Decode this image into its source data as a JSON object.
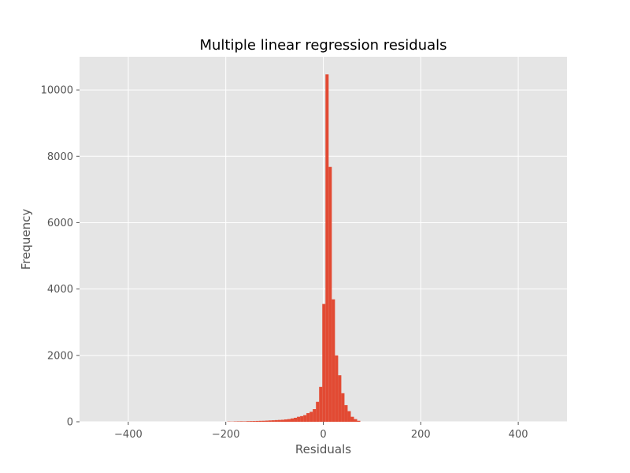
{
  "chart_data": {
    "type": "bar",
    "title": "Multiple linear regression residuals",
    "xlabel": "Residuals",
    "ylabel": "Frequency",
    "xlim": [
      -500,
      500
    ],
    "ylim": [
      0,
      11000
    ],
    "xticks": [
      -400,
      -200,
      0,
      200,
      400
    ],
    "xtick_labels": [
      "−400",
      "−200",
      "0",
      "200",
      "400"
    ],
    "yticks": [
      0,
      2000,
      4000,
      6000,
      8000,
      10000
    ],
    "ytick_labels": [
      "0",
      "2000",
      "4000",
      "6000",
      "8000",
      "10000"
    ],
    "grid": true,
    "bin_width": 6.5,
    "bins": [
      {
        "x": -197,
        "count": 8
      },
      {
        "x": -190.5,
        "count": 6
      },
      {
        "x": -184,
        "count": 10
      },
      {
        "x": -177.5,
        "count": 12
      },
      {
        "x": -171,
        "count": 14
      },
      {
        "x": -164.5,
        "count": 12
      },
      {
        "x": -158,
        "count": 18
      },
      {
        "x": -151.5,
        "count": 20
      },
      {
        "x": -145,
        "count": 22
      },
      {
        "x": -138.5,
        "count": 25
      },
      {
        "x": -132,
        "count": 28
      },
      {
        "x": -125.5,
        "count": 30
      },
      {
        "x": -119,
        "count": 35
      },
      {
        "x": -112.5,
        "count": 40
      },
      {
        "x": -106,
        "count": 45
      },
      {
        "x": -99.5,
        "count": 50
      },
      {
        "x": -93,
        "count": 55
      },
      {
        "x": -86.5,
        "count": 60
      },
      {
        "x": -80,
        "count": 70
      },
      {
        "x": -73.5,
        "count": 80
      },
      {
        "x": -67,
        "count": 100
      },
      {
        "x": -60.5,
        "count": 120
      },
      {
        "x": -54,
        "count": 150
      },
      {
        "x": -47.5,
        "count": 170
      },
      {
        "x": -41,
        "count": 200
      },
      {
        "x": -34.5,
        "count": 260
      },
      {
        "x": -28,
        "count": 300
      },
      {
        "x": -21.5,
        "count": 380
      },
      {
        "x": -15,
        "count": 600
      },
      {
        "x": -8.5,
        "count": 1050
      },
      {
        "x": -2,
        "count": 3550
      },
      {
        "x": 4.5,
        "count": 10470
      },
      {
        "x": 11,
        "count": 7680
      },
      {
        "x": 17.5,
        "count": 3690
      },
      {
        "x": 24,
        "count": 2000
      },
      {
        "x": 30.5,
        "count": 1400
      },
      {
        "x": 37,
        "count": 860
      },
      {
        "x": 43.5,
        "count": 500
      },
      {
        "x": 50,
        "count": 320
      },
      {
        "x": 56.5,
        "count": 150
      },
      {
        "x": 63,
        "count": 80
      },
      {
        "x": 69.5,
        "count": 30
      }
    ]
  },
  "colors": {
    "bar": "#E24A33",
    "plot_bg": "#E5E5E5",
    "grid": "#FFFFFF",
    "page_bg": "#FFFFFF",
    "tick": "#555555"
  }
}
